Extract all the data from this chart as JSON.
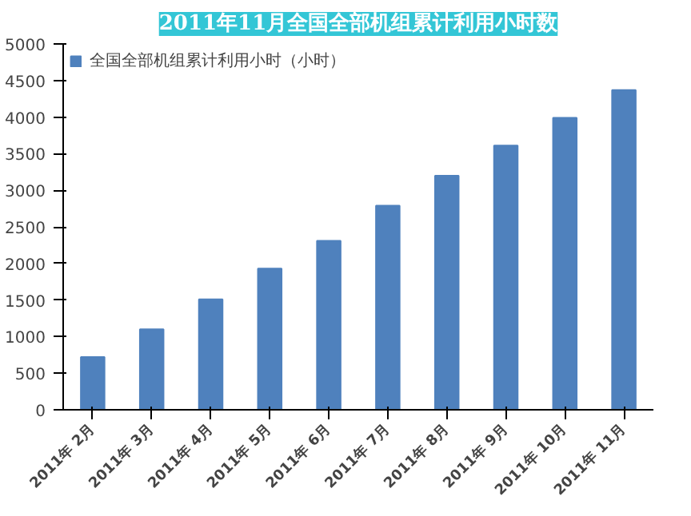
{
  "chart_data": {
    "type": "bar",
    "title": "2011年11月全国全部机组累计利用小时数",
    "categories": [
      "2011年 2月",
      "2011年 3月",
      "2011年 4月",
      "2011年 5月",
      "2011年 6月",
      "2011年 7月",
      "2011年 8月",
      "2011年 9月",
      "2011年 10月",
      "2011年 11月"
    ],
    "series": [
      {
        "name": "全国全部机组累计利用小时（小时）",
        "color": "#4f81bd",
        "values": [
          720,
          1100,
          1510,
          1930,
          2310,
          2790,
          3200,
          3610,
          3990,
          4370
        ]
      }
    ],
    "ylim": [
      0,
      5000
    ],
    "yticks": [
      0,
      500,
      1000,
      1500,
      2000,
      2500,
      3000,
      3500,
      4000,
      4500,
      5000
    ],
    "grid": false,
    "legend": "top"
  }
}
